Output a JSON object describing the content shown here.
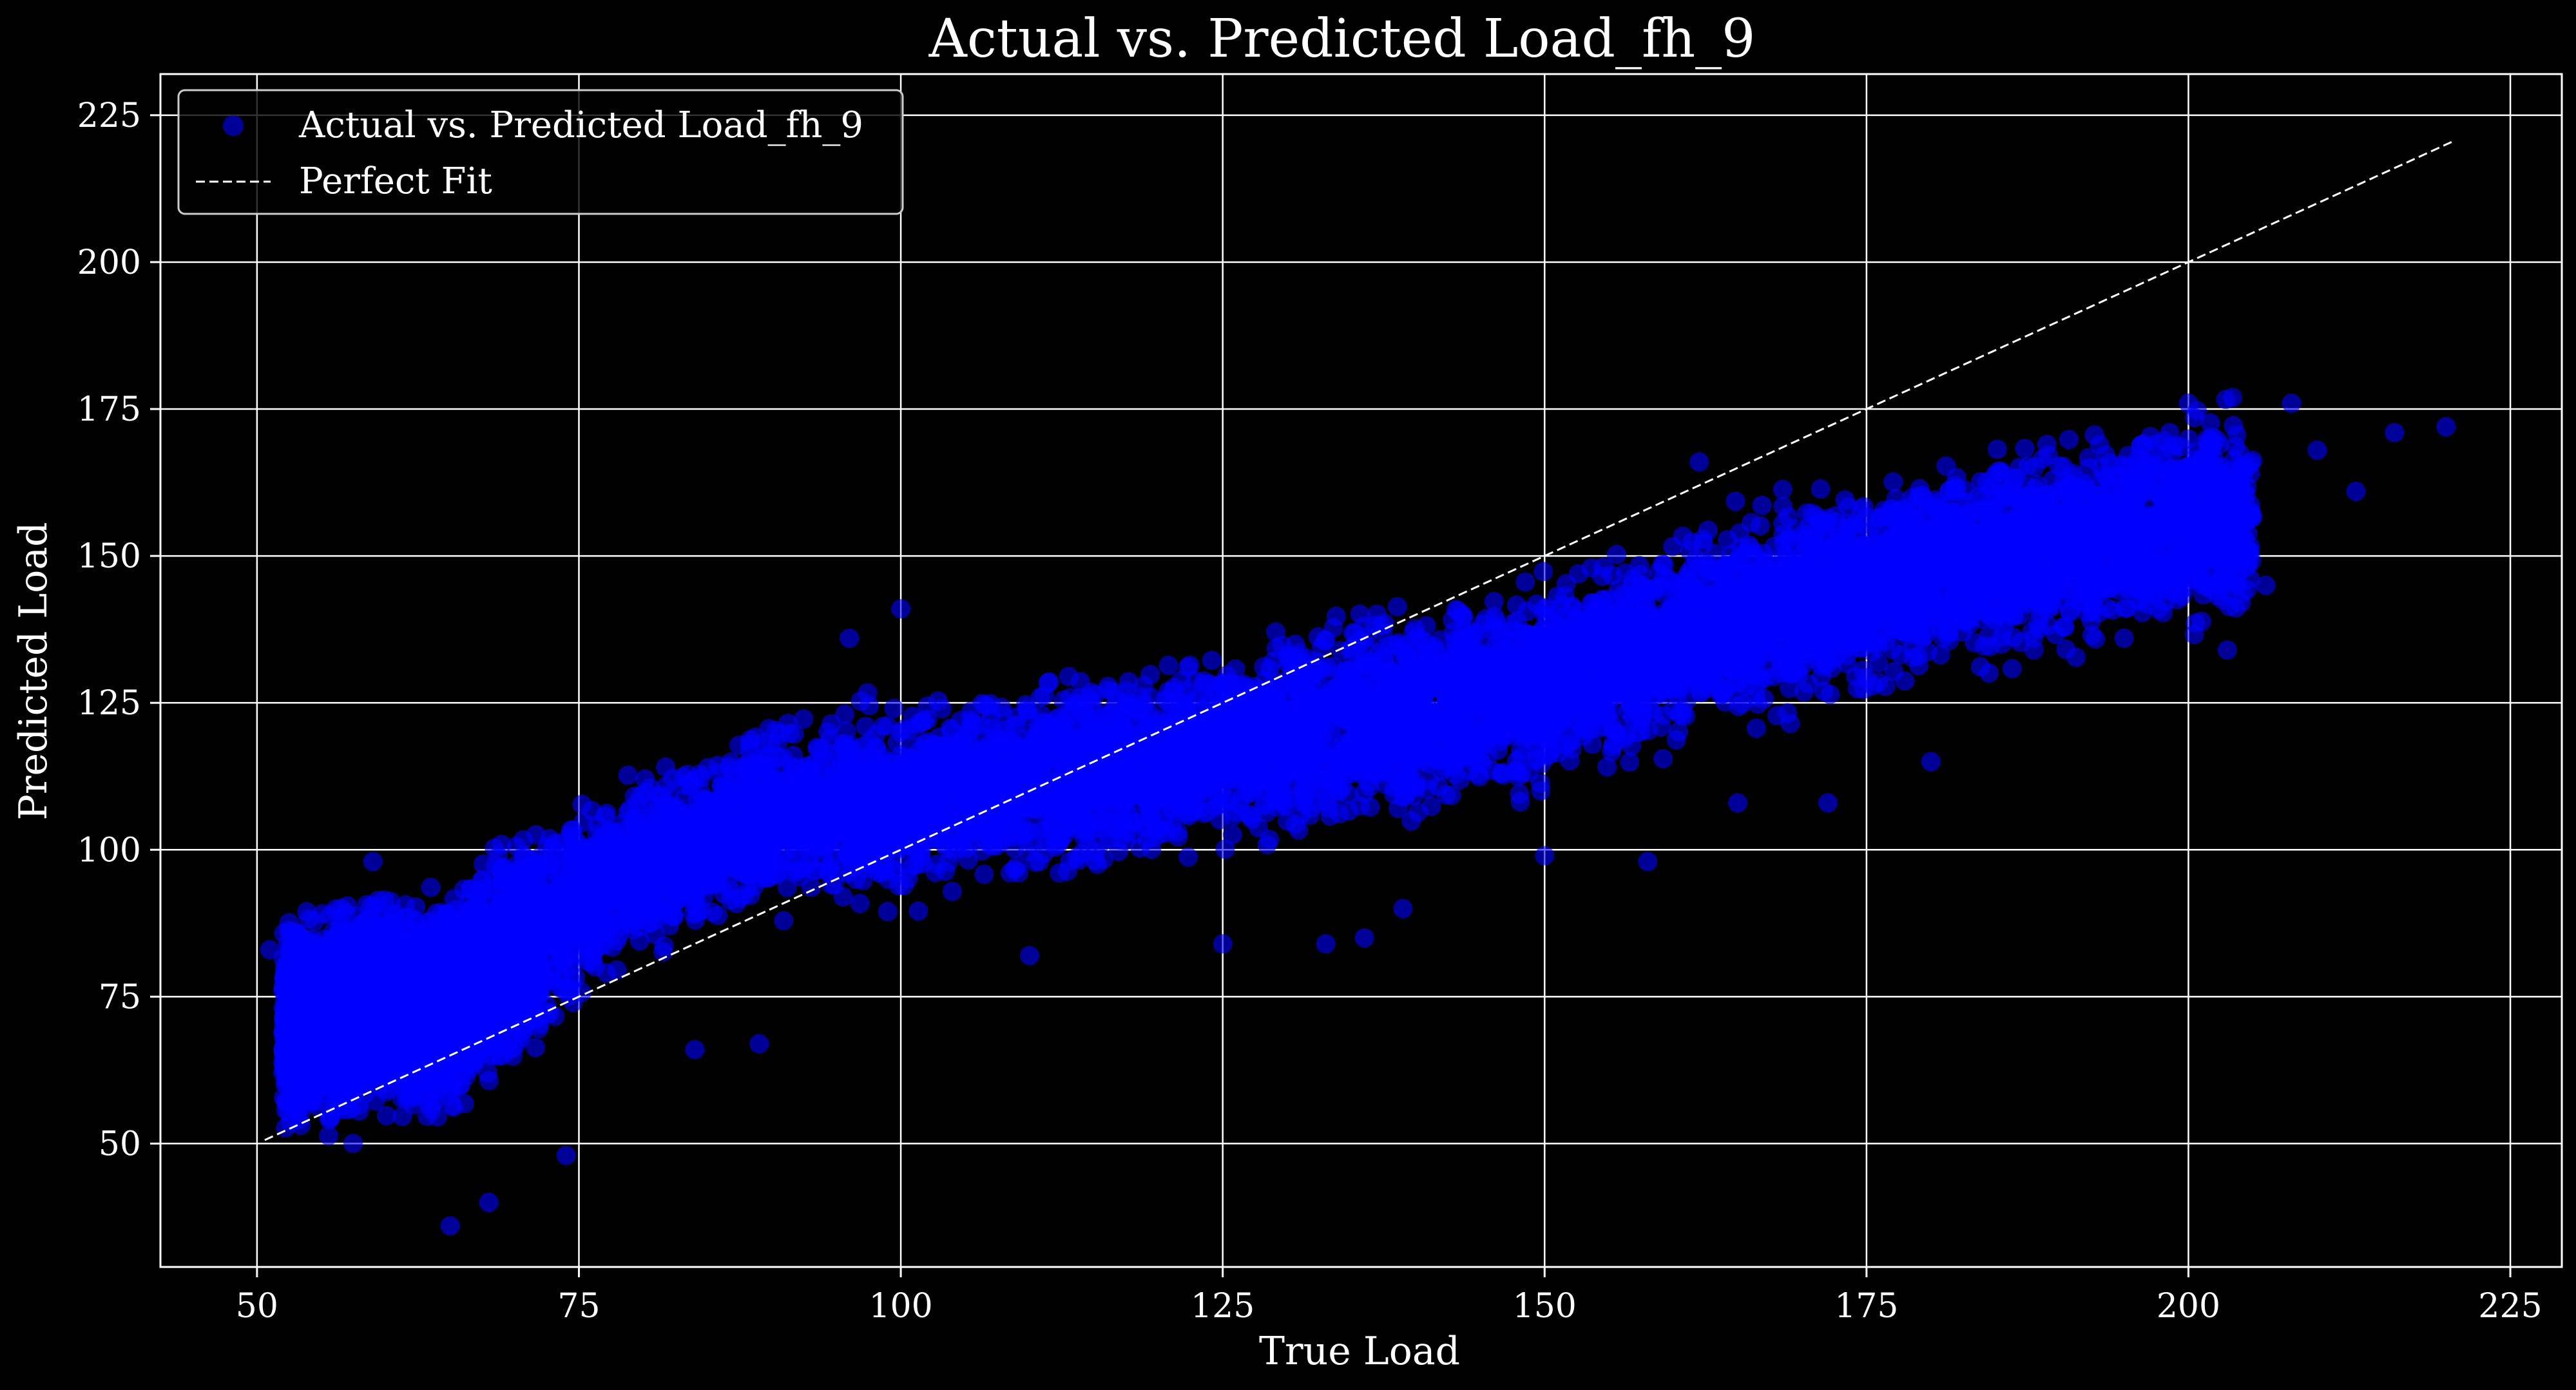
{
  "chart_data": {
    "type": "scatter",
    "title": "Actual vs. Predicted Load_fh_9",
    "xlabel": "True Load",
    "ylabel": "Predicted Load",
    "xlim": [
      42.5,
      229
    ],
    "ylim": [
      29,
      232
    ],
    "xticks": [
      50,
      75,
      100,
      125,
      150,
      175,
      200,
      225
    ],
    "yticks": [
      50,
      75,
      100,
      125,
      150,
      175,
      200,
      225
    ],
    "grid": true,
    "legend_position": "top-left",
    "background_color": "#000000",
    "grid_color": "#ffffff",
    "series": [
      {
        "name": "Actual vs. Predicted Load_fh_9",
        "kind": "scatter",
        "color": "#0000ff",
        "alpha": 0.6,
        "approx_point_count": 12000,
        "trend_points": [
          {
            "x": 52,
            "y": 70
          },
          {
            "x": 56,
            "y": 72
          },
          {
            "x": 60,
            "y": 74
          },
          {
            "x": 63,
            "y": 72
          },
          {
            "x": 66,
            "y": 76
          },
          {
            "x": 70,
            "y": 83
          },
          {
            "x": 75,
            "y": 92
          },
          {
            "x": 80,
            "y": 98
          },
          {
            "x": 90,
            "y": 105
          },
          {
            "x": 100,
            "y": 108
          },
          {
            "x": 110,
            "y": 112
          },
          {
            "x": 120,
            "y": 115
          },
          {
            "x": 130,
            "y": 120
          },
          {
            "x": 140,
            "y": 124
          },
          {
            "x": 150,
            "y": 128
          },
          {
            "x": 160,
            "y": 136
          },
          {
            "x": 170,
            "y": 142
          },
          {
            "x": 180,
            "y": 148
          },
          {
            "x": 190,
            "y": 152
          },
          {
            "x": 200,
            "y": 156
          }
        ],
        "outlier_points": [
          {
            "x": 51,
            "y": 83
          },
          {
            "x": 53,
            "y": 83
          },
          {
            "x": 59,
            "y": 98
          },
          {
            "x": 65,
            "y": 36
          },
          {
            "x": 68,
            "y": 40
          },
          {
            "x": 74,
            "y": 48
          },
          {
            "x": 84,
            "y": 66
          },
          {
            "x": 89,
            "y": 67
          },
          {
            "x": 96,
            "y": 136
          },
          {
            "x": 100,
            "y": 141
          },
          {
            "x": 110,
            "y": 82
          },
          {
            "x": 125,
            "y": 84
          },
          {
            "x": 133,
            "y": 84
          },
          {
            "x": 136,
            "y": 85
          },
          {
            "x": 139,
            "y": 90
          },
          {
            "x": 150,
            "y": 99
          },
          {
            "x": 158,
            "y": 98
          },
          {
            "x": 162,
            "y": 166
          },
          {
            "x": 165,
            "y": 108
          },
          {
            "x": 172,
            "y": 108
          },
          {
            "x": 180,
            "y": 115
          },
          {
            "x": 188,
            "y": 134
          },
          {
            "x": 195,
            "y": 136
          },
          {
            "x": 200,
            "y": 176
          },
          {
            "x": 206,
            "y": 145
          },
          {
            "x": 208,
            "y": 176
          },
          {
            "x": 210,
            "y": 168
          },
          {
            "x": 213,
            "y": 161
          },
          {
            "x": 216,
            "y": 171
          },
          {
            "x": 220,
            "y": 172
          }
        ]
      },
      {
        "name": "Perfect Fit",
        "kind": "line",
        "style": "dashed",
        "color": "#ffffff",
        "x": [
          50.6,
          220.6
        ],
        "y": [
          50.6,
          220.6
        ]
      }
    ]
  }
}
